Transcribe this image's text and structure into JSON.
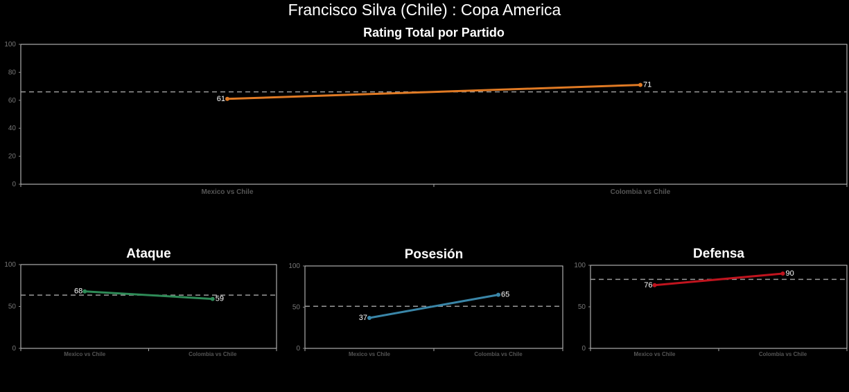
{
  "page_title": "Francisco Silva (Chile) :  Copa  America",
  "chart_data": [
    {
      "type": "line",
      "title": "Rating Total por Partido",
      "categories": [
        "Mexico vs Chile",
        "Colombia vs Chile"
      ],
      "values": [
        61,
        71
      ],
      "ylim": [
        0,
        100
      ],
      "yticks": [
        0,
        20,
        40,
        60,
        80,
        100
      ],
      "reference_line": 66,
      "color": "#e07a24"
    },
    {
      "type": "line",
      "title": "Ataque",
      "categories": [
        "Mexico vs Chile",
        "Colombia vs Chile"
      ],
      "values": [
        68,
        59
      ],
      "ylim": [
        0,
        100
      ],
      "yticks": [
        0,
        50,
        100
      ],
      "reference_line": 63.5,
      "color": "#2e8b57"
    },
    {
      "type": "line",
      "title": "Posesión",
      "categories": [
        "Mexico vs Chile",
        "Colombia vs Chile"
      ],
      "values": [
        37,
        65
      ],
      "ylim": [
        0,
        100
      ],
      "yticks": [
        0,
        50,
        100
      ],
      "reference_line": 51,
      "color": "#3a86a8"
    },
    {
      "type": "line",
      "title": "Defensa",
      "categories": [
        "Mexico vs Chile",
        "Colombia vs Chile"
      ],
      "values": [
        76,
        90
      ],
      "ylim": [
        0,
        100
      ],
      "yticks": [
        0,
        50,
        100
      ],
      "reference_line": 83,
      "color": "#c0141e"
    }
  ]
}
